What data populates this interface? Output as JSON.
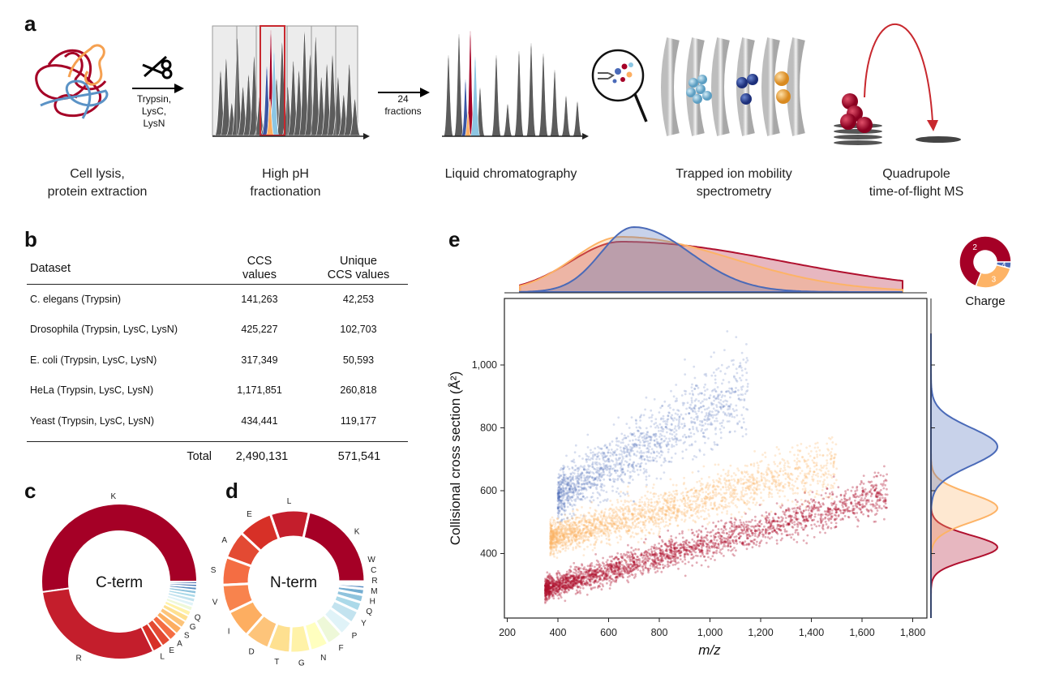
{
  "panel_labels": {
    "a": "a",
    "b": "b",
    "c": "c",
    "d": "d",
    "e": "e"
  },
  "workflow": {
    "enzymes": [
      "Trypsin,",
      "LysC,",
      "LysN"
    ],
    "fractions_label": [
      "24",
      "fractions"
    ],
    "steps": [
      [
        "Cell lysis,",
        "protein extraction"
      ],
      [
        "High pH",
        "fractionation"
      ],
      [
        "Liquid chromatography"
      ],
      [
        "Trapped ion mobility",
        "spectrometry"
      ],
      [
        "Quadrupole",
        "time-of-flight MS"
      ]
    ]
  },
  "table": {
    "headers": [
      [
        "Dataset"
      ],
      [
        "CCS",
        "values"
      ],
      [
        "Unique",
        "CCS values"
      ]
    ],
    "rows": [
      [
        "C. elegans (Trypsin)",
        "141,263",
        "42,253"
      ],
      [
        "Drosophila (Trypsin, LysC, LysN)",
        "425,227",
        "102,703"
      ],
      [
        "E. coli (Trypsin, LysC, LysN)",
        "317,349",
        "50,593"
      ],
      [
        "HeLa (Trypsin, LysC, LysN)",
        "1,171,851",
        "260,818"
      ],
      [
        "Yeast (Trypsin, LysC, LysN)",
        "434,441",
        "119,177"
      ]
    ],
    "total": [
      "Total",
      "2,490,131",
      "571,541"
    ]
  },
  "chart_data": [
    {
      "type": "pie",
      "panel": "c",
      "center_label": "C-term",
      "slices": [
        {
          "label": "K",
          "value": 52
        },
        {
          "label": "R",
          "value": 30
        },
        {
          "label": "L",
          "value": 2.2
        },
        {
          "label": "E",
          "value": 2.0
        },
        {
          "label": "A",
          "value": 1.8
        },
        {
          "label": "S",
          "value": 1.6
        },
        {
          "label": "G",
          "value": 1.5
        },
        {
          "label": "Q",
          "value": 1.3
        },
        {
          "label": "",
          "value": 1.1
        },
        {
          "label": "",
          "value": 1.0
        },
        {
          "label": "",
          "value": 0.9
        },
        {
          "label": "",
          "value": 0.9
        },
        {
          "label": "",
          "value": 0.8
        },
        {
          "label": "",
          "value": 0.8
        },
        {
          "label": "",
          "value": 0.7
        },
        {
          "label": "",
          "value": 0.6
        },
        {
          "label": "",
          "value": 0.5
        }
      ]
    },
    {
      "type": "pie",
      "panel": "d",
      "center_label": "N-term",
      "slices": [
        {
          "label": "K",
          "value": 22
        },
        {
          "label": "L",
          "value": 9
        },
        {
          "label": "E",
          "value": 8
        },
        {
          "label": "A",
          "value": 6.5
        },
        {
          "label": "S",
          "value": 6.5
        },
        {
          "label": "V",
          "value": 6.5
        },
        {
          "label": "I",
          "value": 6.5
        },
        {
          "label": "D",
          "value": 5.8
        },
        {
          "label": "T",
          "value": 5.2
        },
        {
          "label": "G",
          "value": 4.8
        },
        {
          "label": "N",
          "value": 4.3
        },
        {
          "label": "F",
          "value": 3.8
        },
        {
          "label": "P",
          "value": 3.4
        },
        {
          "label": "Y",
          "value": 3.0
        },
        {
          "label": "Q",
          "value": 2.2
        },
        {
          "label": "H",
          "value": 1.8
        },
        {
          "label": "M",
          "value": 1.4
        },
        {
          "label": "R",
          "value": 0.9
        },
        {
          "label": "C",
          "value": 0.5
        },
        {
          "label": "W",
          "value": 0.3
        }
      ]
    },
    {
      "type": "pie",
      "panel": "e-inset",
      "title": "Charge",
      "slices": [
        {
          "label": "2",
          "value": 69
        },
        {
          "label": "3",
          "value": 27
        },
        {
          "label": "4",
          "value": 4
        }
      ]
    },
    {
      "type": "scatter",
      "panel": "e",
      "xlabel": "m/z",
      "ylabel": "Collisional cross section (Å²)",
      "xlim": [
        200,
        1800
      ],
      "ylim": [
        195,
        1210
      ],
      "xticks": [
        "200",
        "400",
        "600",
        "800",
        "1,000",
        "1,200",
        "1,400",
        "1,600",
        "1,800"
      ],
      "xtick_values": [
        200,
        400,
        600,
        800,
        1000,
        1200,
        1400,
        1600,
        1800
      ],
      "yticks": [
        "400",
        "600",
        "800",
        "1,000"
      ],
      "ytick_values": [
        400,
        600,
        800,
        1000
      ],
      "series": [
        {
          "charge": "2",
          "color": "#b0102e",
          "mz_range": [
            350,
            1700
          ],
          "ccs_trend": [
            [
              400,
              300
            ],
            [
              1650,
              580
            ]
          ],
          "ccs_spread": 28,
          "mz_mode": 650,
          "ccs_mode": 420
        },
        {
          "charge": "3",
          "color": "#fdb366",
          "mz_range": [
            370,
            1500
          ],
          "ccs_trend": [
            [
              400,
              455
            ],
            [
              1400,
              660
            ]
          ],
          "ccs_spread": 40,
          "mz_mode": 650,
          "ccs_mode": 545
        },
        {
          "charge": "4",
          "color": "#4a6ab8",
          "mz_range": [
            400,
            1150
          ],
          "ccs_trend": [
            [
              450,
              610
            ],
            [
              1100,
              900
            ]
          ],
          "ccs_spread": 60,
          "mz_mode": 700,
          "ccs_mode": 740
        }
      ],
      "grid": false
    }
  ],
  "colors": {
    "red": "#a50026",
    "orange": "#fdae61",
    "blue": "#4a6ab8",
    "light_blue": "#8cc6e3",
    "gray": "#5c5c5c",
    "palette": [
      "#a50026",
      "#c41e2c",
      "#d73027",
      "#e34a33",
      "#f46d43",
      "#f8834d",
      "#fdae61",
      "#fdc47a",
      "#fee090",
      "#fff2a8",
      "#ffffbf",
      "#eef8d8",
      "#e0f3f8",
      "#c3e3ef",
      "#abd9e9",
      "#8fc3dd",
      "#74add1",
      "#5b8fc3",
      "#4575b4",
      "#3a5ea6"
    ]
  }
}
